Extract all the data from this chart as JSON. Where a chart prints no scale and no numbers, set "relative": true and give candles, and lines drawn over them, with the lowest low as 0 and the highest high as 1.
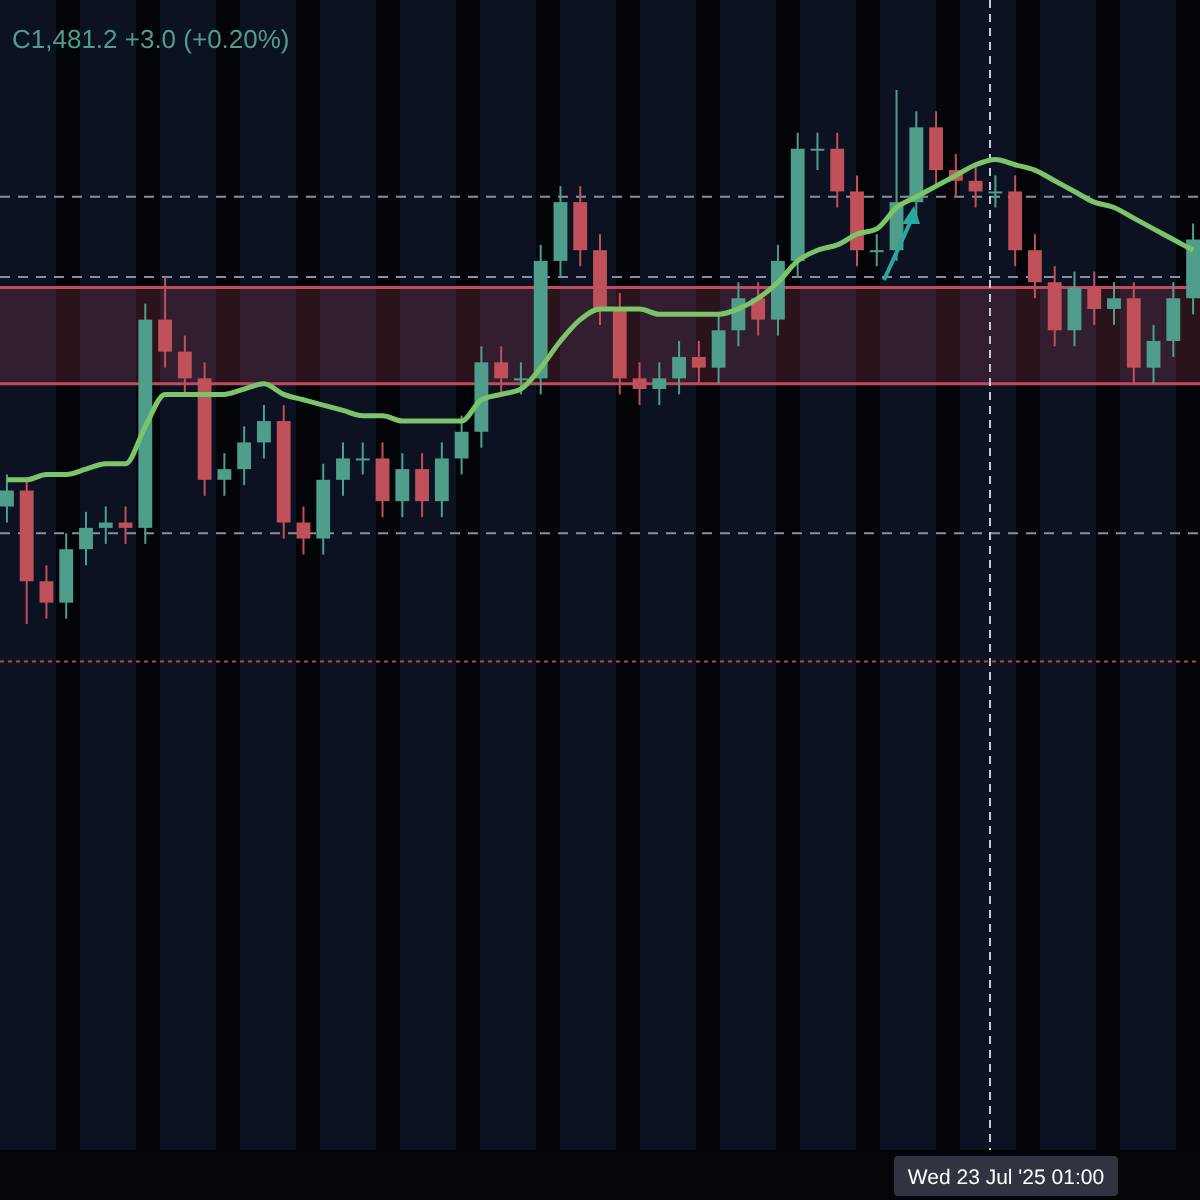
{
  "chart_data": {
    "type": "candlestick",
    "relative": true,
    "categories": [
      null,
      null,
      null,
      null,
      null,
      null,
      null,
      null,
      null,
      null,
      null,
      null,
      null,
      null,
      null,
      null,
      null,
      null,
      null,
      null,
      null,
      null,
      null,
      null,
      null,
      null,
      null,
      null,
      null,
      null,
      null,
      null,
      null,
      null,
      null,
      null,
      null,
      null,
      null,
      null,
      null,
      null,
      null,
      null,
      null,
      null,
      null,
      null,
      null,
      null,
      null,
      null,
      null,
      null,
      null,
      null,
      null,
      null,
      null,
      null,
      null
    ],
    "ohlc": [
      [
        0.22,
        0.28,
        0.19,
        0.25
      ],
      [
        0.25,
        0.27,
        0.0,
        0.08
      ],
      [
        0.08,
        0.11,
        0.01,
        0.04
      ],
      [
        0.04,
        0.17,
        0.01,
        0.14
      ],
      [
        0.14,
        0.21,
        0.11,
        0.18
      ],
      [
        0.18,
        0.22,
        0.15,
        0.19
      ],
      [
        0.19,
        0.22,
        0.15,
        0.18
      ],
      [
        0.18,
        0.6,
        0.15,
        0.57
      ],
      [
        0.57,
        0.65,
        0.48,
        0.51
      ],
      [
        0.51,
        0.54,
        0.43,
        0.46
      ],
      [
        0.46,
        0.49,
        0.24,
        0.27
      ],
      [
        0.27,
        0.32,
        0.24,
        0.29
      ],
      [
        0.29,
        0.37,
        0.26,
        0.34
      ],
      [
        0.34,
        0.41,
        0.31,
        0.38
      ],
      [
        0.38,
        0.41,
        0.16,
        0.19
      ],
      [
        0.19,
        0.22,
        0.13,
        0.16
      ],
      [
        0.16,
        0.3,
        0.13,
        0.27
      ],
      [
        0.27,
        0.34,
        0.24,
        0.31
      ],
      [
        0.31,
        0.34,
        0.28,
        0.31
      ],
      [
        0.31,
        0.34,
        0.2,
        0.23
      ],
      [
        0.23,
        0.32,
        0.2,
        0.29
      ],
      [
        0.29,
        0.32,
        0.2,
        0.23
      ],
      [
        0.23,
        0.34,
        0.2,
        0.31
      ],
      [
        0.31,
        0.39,
        0.28,
        0.36
      ],
      [
        0.36,
        0.52,
        0.33,
        0.49
      ],
      [
        0.49,
        0.52,
        0.43,
        0.46
      ],
      [
        0.46,
        0.49,
        0.43,
        0.46
      ],
      [
        0.46,
        0.71,
        0.43,
        0.68
      ],
      [
        0.68,
        0.82,
        0.65,
        0.79
      ],
      [
        0.79,
        0.82,
        0.67,
        0.7
      ],
      [
        0.7,
        0.73,
        0.56,
        0.59
      ],
      [
        0.59,
        0.62,
        0.43,
        0.46
      ],
      [
        0.46,
        0.49,
        0.41,
        0.44
      ],
      [
        0.44,
        0.49,
        0.41,
        0.46
      ],
      [
        0.46,
        0.53,
        0.43,
        0.5
      ],
      [
        0.5,
        0.53,
        0.45,
        0.48
      ],
      [
        0.48,
        0.58,
        0.45,
        0.55
      ],
      [
        0.55,
        0.64,
        0.52,
        0.61
      ],
      [
        0.61,
        0.64,
        0.54,
        0.57
      ],
      [
        0.57,
        0.71,
        0.54,
        0.68
      ],
      [
        0.68,
        0.92,
        0.65,
        0.89
      ],
      [
        0.89,
        0.92,
        0.85,
        0.89
      ],
      [
        0.89,
        0.92,
        0.78,
        0.81
      ],
      [
        0.81,
        0.84,
        0.67,
        0.7
      ],
      [
        0.7,
        0.73,
        0.67,
        0.7
      ],
      [
        0.7,
        1.0,
        0.68,
        0.79
      ],
      [
        0.79,
        0.96,
        0.76,
        0.93
      ],
      [
        0.93,
        0.96,
        0.82,
        0.85
      ],
      [
        0.85,
        0.88,
        0.8,
        0.83
      ],
      [
        0.83,
        0.86,
        0.78,
        0.81
      ],
      [
        0.81,
        0.84,
        0.78,
        0.81
      ],
      [
        0.81,
        0.84,
        0.67,
        0.7
      ],
      [
        0.7,
        0.73,
        0.61,
        0.64
      ],
      [
        0.64,
        0.67,
        0.52,
        0.55
      ],
      [
        0.55,
        0.66,
        0.52,
        0.63
      ],
      [
        0.63,
        0.66,
        0.56,
        0.59
      ],
      [
        0.59,
        0.64,
        0.56,
        0.61
      ],
      [
        0.61,
        0.64,
        0.45,
        0.48
      ],
      [
        0.48,
        0.56,
        0.45,
        0.53
      ],
      [
        0.53,
        0.64,
        0.5,
        0.61
      ],
      [
        0.61,
        0.75,
        0.58,
        0.72
      ]
    ],
    "series": [
      {
        "type": "line",
        "color": "#7cc46a",
        "values": [
          0.27,
          0.27,
          0.28,
          0.28,
          0.29,
          0.3,
          0.3,
          0.37,
          0.43,
          0.43,
          0.43,
          0.43,
          0.44,
          0.45,
          0.43,
          0.42,
          0.41,
          0.4,
          0.39,
          0.39,
          0.38,
          0.38,
          0.38,
          0.38,
          0.42,
          0.43,
          0.44,
          0.48,
          0.53,
          0.57,
          0.59,
          0.59,
          0.59,
          0.58,
          0.58,
          0.58,
          0.58,
          0.59,
          0.61,
          0.64,
          0.68,
          0.7,
          0.71,
          0.73,
          0.74,
          0.78,
          0.8,
          0.82,
          0.84,
          0.86,
          0.87,
          0.86,
          0.85,
          0.83,
          0.81,
          0.79,
          0.78,
          0.76,
          0.74,
          0.72,
          0.7
        ]
      }
    ],
    "bands": [
      {
        "axis": "y",
        "from": 0.45,
        "to": 0.63,
        "color": "#c04a5e"
      }
    ],
    "ref_lines": [
      {
        "axis": "y",
        "value": 0.63,
        "color": "#c04a5e",
        "line_style": "solid"
      },
      {
        "axis": "y",
        "value": 0.45,
        "color": "#c04a5e",
        "line_style": "solid"
      },
      {
        "axis": "y",
        "value": 0.8,
        "color": "#8a8f9a",
        "line_style": "dashed"
      },
      {
        "axis": "y",
        "value": 0.65,
        "color": "#8a8f9a",
        "line_style": "dashed"
      },
      {
        "axis": "y",
        "value": 0.17,
        "color": "#8a8f9a",
        "line_style": "dashed"
      },
      {
        "axis": "y",
        "value": -0.07,
        "color": "#b04a4a",
        "line_style": "dotted"
      }
    ],
    "annotations": [
      "C1,481.2  +3.0 (+0.20%)",
      "Wed 23 Jul '25  01:00"
    ]
  }
}
